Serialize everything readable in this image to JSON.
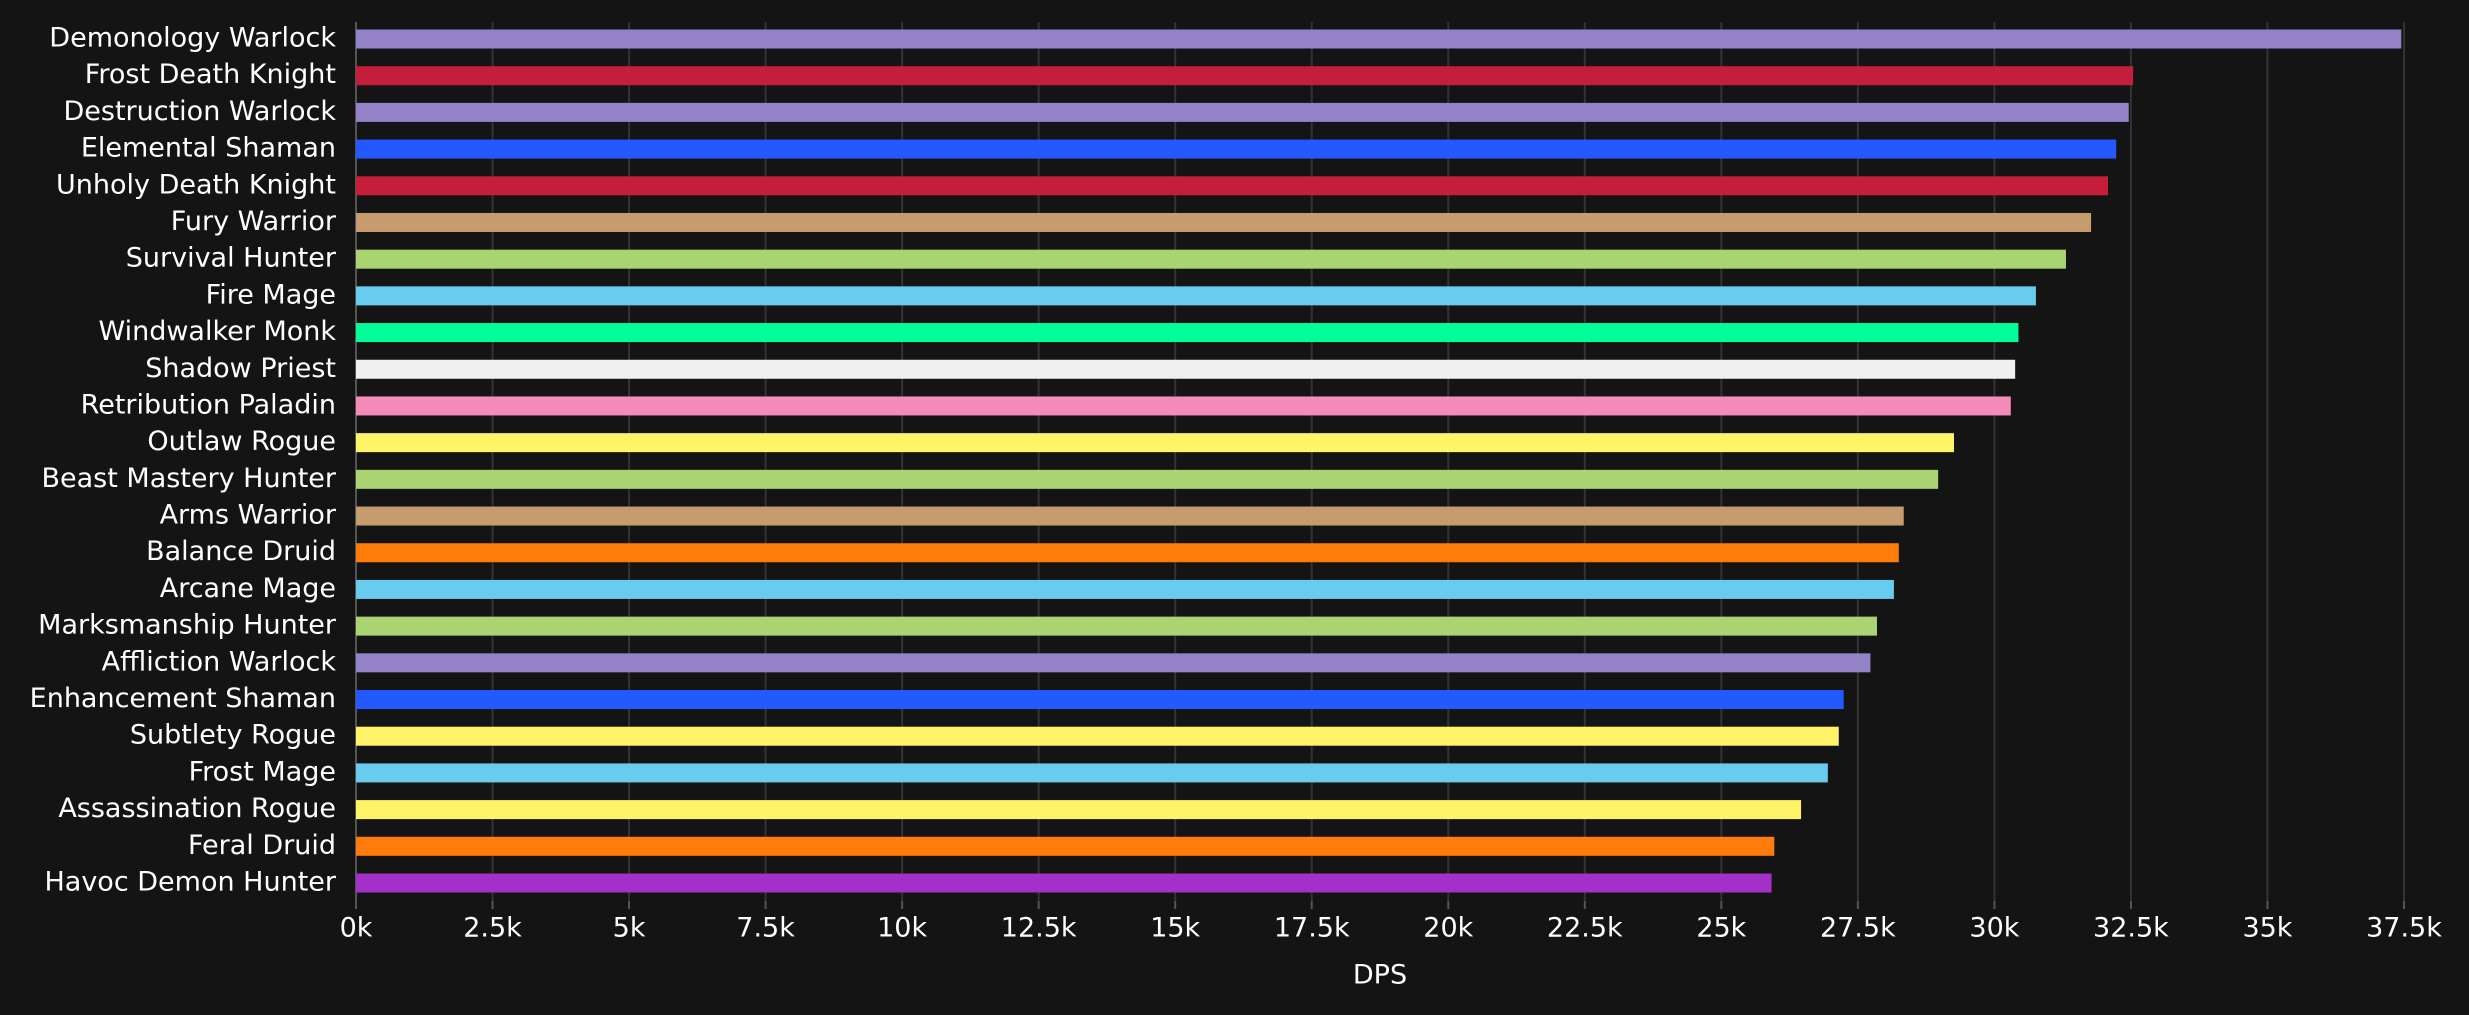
{
  "chart_data": {
    "type": "hbar",
    "x_label": "DPS",
    "categories": [
      "Demonology Warlock",
      "Frost Death Knight",
      "Destruction Warlock",
      "Elemental Shaman",
      "Unholy Death Knight",
      "Fury Warrior",
      "Survival Hunter",
      "Fire Mage",
      "Windwalker Monk",
      "Shadow Priest",
      "Retribution Paladin",
      "Outlaw Rogue",
      "Beast Mastery Hunter",
      "Arms Warrior",
      "Balance Druid",
      "Arcane Mage",
      "Marksmanship Hunter",
      "Affliction Warlock",
      "Enhancement Shaman",
      "Subtlety Rogue",
      "Frost Mage",
      "Assassination Rogue",
      "Feral Druid",
      "Havoc Demon Hunter"
    ],
    "values": [
      37450,
      32540,
      32460,
      32230,
      32080,
      31770,
      31310,
      30760,
      30440,
      30380,
      30300,
      29260,
      28970,
      28340,
      28250,
      28160,
      27850,
      27730,
      27240,
      27150,
      26950,
      26460,
      25970,
      25920
    ],
    "colors": [
      "#9482c9",
      "#c41e3a",
      "#9482c9",
      "#2459ff",
      "#c41e3a",
      "#c69b6d",
      "#aad372",
      "#68ccef",
      "#00ff98",
      "#f0f0f0",
      "#f48cba",
      "#fff468",
      "#aad372",
      "#c69b6d",
      "#ff7c0a",
      "#68ccef",
      "#aad372",
      "#9482c9",
      "#2459ff",
      "#fff468",
      "#68ccef",
      "#fff468",
      "#ff7c0a",
      "#a330c9"
    ],
    "xlim": [
      0,
      37500
    ],
    "xticks": [
      {
        "value": 0,
        "label": "0k"
      },
      {
        "value": 2500,
        "label": "2.5k"
      },
      {
        "value": 5000,
        "label": "5k"
      },
      {
        "value": 7500,
        "label": "7.5k"
      },
      {
        "value": 10000,
        "label": "10k"
      },
      {
        "value": 12500,
        "label": "12.5k"
      },
      {
        "value": 15000,
        "label": "15k"
      },
      {
        "value": 17500,
        "label": "17.5k"
      },
      {
        "value": 20000,
        "label": "20k"
      },
      {
        "value": 22500,
        "label": "22.5k"
      },
      {
        "value": 25000,
        "label": "25k"
      },
      {
        "value": 27500,
        "label": "27.5k"
      },
      {
        "value": 30000,
        "label": "30k"
      },
      {
        "value": 32500,
        "label": "32.5k"
      },
      {
        "value": 35000,
        "label": "35k"
      },
      {
        "value": 37500,
        "label": "37.5k"
      }
    ],
    "grid": true
  }
}
